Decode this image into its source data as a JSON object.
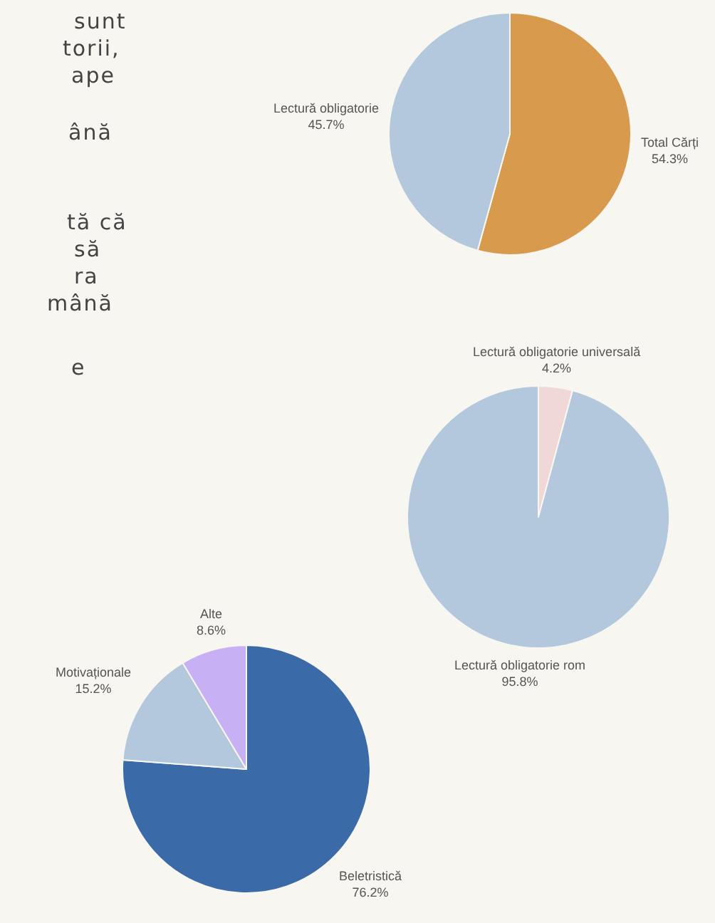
{
  "chart_data": [
    {
      "type": "other",
      "annotations": [
        "sunt",
        "torii,",
        "ape",
        "ână",
        "tă că",
        "să",
        "ra",
        "mână",
        "e"
      ]
    },
    {
      "type": "pie",
      "categories": [
        "Total Cărți",
        "Lectură obligatorie"
      ],
      "values": [
        54.3,
        45.7
      ],
      "colors": [
        "#d89a4c",
        "#b3c7dd"
      ],
      "value_labels": [
        "54.3%",
        "45.7%"
      ]
    },
    {
      "type": "pie",
      "categories": [
        "Lectură obligatorie universală",
        "Lectură obligatorie rom"
      ],
      "values": [
        4.2,
        95.8
      ],
      "colors": [
        "#f0d8d6",
        "#b3c7dd"
      ],
      "value_labels": [
        "4.2%",
        "95.8%"
      ]
    },
    {
      "type": "pie",
      "categories": [
        "Beletristică",
        "Motivaționale",
        "Alte"
      ],
      "values": [
        76.2,
        15.2,
        8.6
      ],
      "colors": [
        "#3b6aa8",
        "#b3c7dd",
        "#c8b0f5"
      ],
      "value_labels": [
        "76.2%",
        "15.2%",
        "8.6%"
      ]
    }
  ]
}
